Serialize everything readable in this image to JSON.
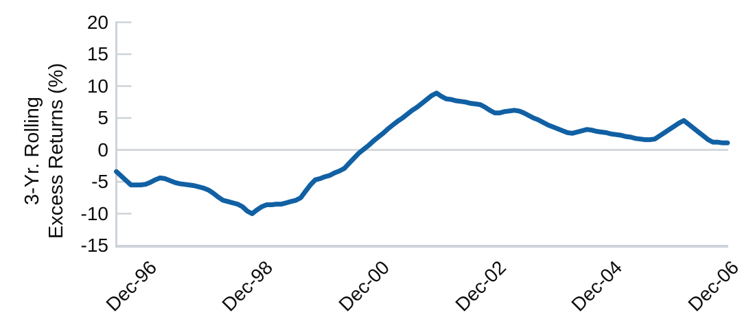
{
  "chart_data": {
    "type": "line",
    "title": "",
    "ylabel_lines": [
      "3-Yr. Rolling",
      "Excess Returns (%)"
    ],
    "x_tick_labels": [
      "Dec-96",
      "Dec-98",
      "Dec-00",
      "Dec-02",
      "Dec-04",
      "Dec-06"
    ],
    "x_tick_month_indices": [
      6,
      30,
      54,
      78,
      102,
      126
    ],
    "y_tick_labels": [
      "20",
      "15",
      "10",
      "5",
      "0",
      "-5",
      "-10",
      "-15"
    ],
    "y_tick_values": [
      20,
      15,
      10,
      5,
      0,
      -5,
      -10,
      -15
    ],
    "ylim": [
      -15,
      20
    ],
    "legend": "none",
    "grid": "horizontal zero-line only",
    "line_color": "#1160A4",
    "axis_color": "#CDD3D9",
    "zero_line_color": "#D5D8DC",
    "series": [
      {
        "name": "3-Yr. Rolling Excess Returns (%)",
        "frequency": "monthly",
        "start": "Jun-1996",
        "end": "Dec-2006",
        "values": [
          -3.4,
          -4.1,
          -4.8,
          -5.5,
          -5.5,
          -5.5,
          -5.4,
          -5.1,
          -4.7,
          -4.4,
          -4.5,
          -4.8,
          -5.1,
          -5.3,
          -5.4,
          -5.5,
          -5.6,
          -5.8,
          -6.0,
          -6.3,
          -6.8,
          -7.4,
          -7.9,
          -8.1,
          -8.3,
          -8.5,
          -8.9,
          -9.6,
          -10.0,
          -9.4,
          -8.9,
          -8.6,
          -8.6,
          -8.5,
          -8.5,
          -8.3,
          -8.1,
          -7.9,
          -7.5,
          -6.5,
          -5.5,
          -4.7,
          -4.5,
          -4.2,
          -4.0,
          -3.6,
          -3.3,
          -2.9,
          -2.1,
          -1.3,
          -0.5,
          0.1,
          0.7,
          1.4,
          2.0,
          2.6,
          3.3,
          3.9,
          4.5,
          5.0,
          5.6,
          6.2,
          6.7,
          7.3,
          7.9,
          8.5,
          8.9,
          8.4,
          8.0,
          7.9,
          7.7,
          7.6,
          7.5,
          7.3,
          7.2,
          7.1,
          6.7,
          6.2,
          5.8,
          5.8,
          6.0,
          6.1,
          6.2,
          6.1,
          5.8,
          5.4,
          5.0,
          4.7,
          4.3,
          3.9,
          3.6,
          3.3,
          3.0,
          2.7,
          2.6,
          2.8,
          3.0,
          3.2,
          3.1,
          2.9,
          2.8,
          2.7,
          2.5,
          2.4,
          2.3,
          2.1,
          2.0,
          1.8,
          1.7,
          1.6,
          1.6,
          1.7,
          2.2,
          2.7,
          3.2,
          3.7,
          4.2,
          4.6,
          4.0,
          3.4,
          2.8,
          2.2,
          1.6,
          1.2,
          1.2,
          1.1,
          1.1
        ]
      }
    ]
  }
}
